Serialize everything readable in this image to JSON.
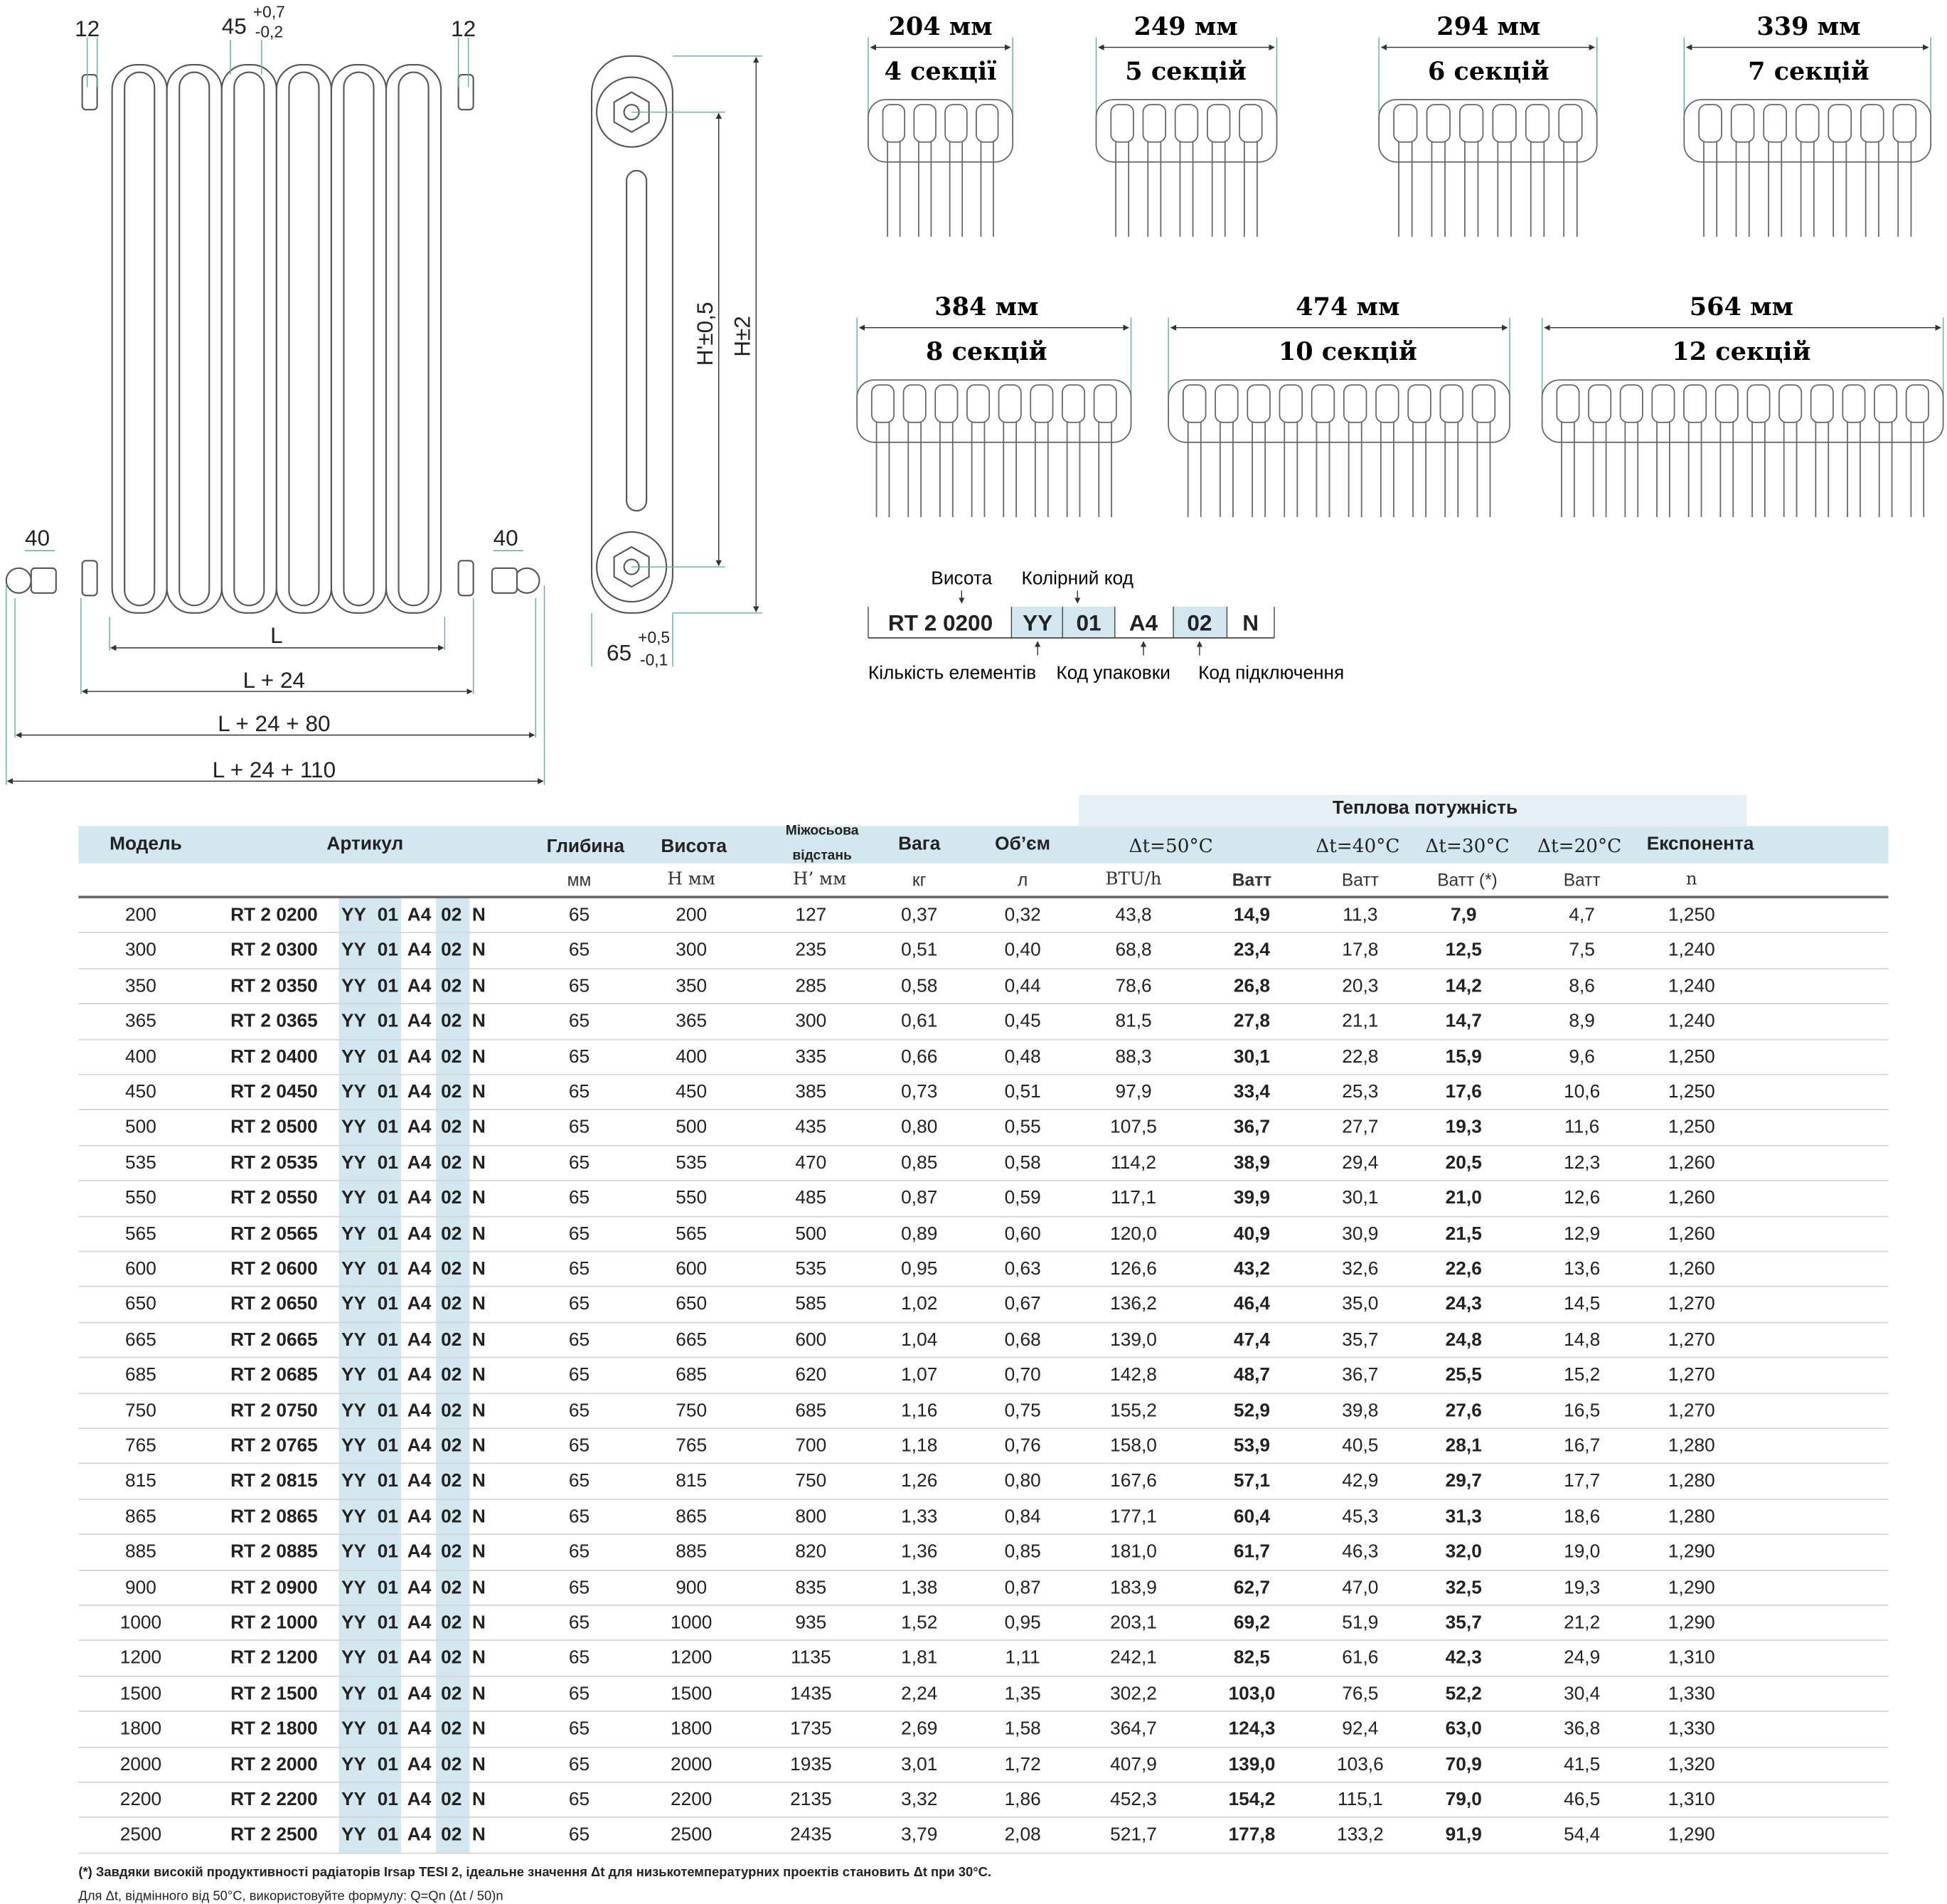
{
  "front_view": {
    "dim_left_12": "12",
    "dim_right_12": "12",
    "dim_45": "45",
    "tol_45_plus": "+0,7",
    "tol_45_minus": "-0,2",
    "dim_left_40": "40",
    "dim_right_40": "40",
    "dim_L": "L",
    "dim_L24": "L + 24",
    "dim_L24_80": "L + 24 + 80",
    "dim_L24_110": "L + 24 + 110"
  },
  "side_view": {
    "dim_h_axis": "H'±0,5",
    "dim_h": "H±2",
    "dim_65": "65",
    "tol_65_plus": "+0,5",
    "tol_65_minus": "-0,1"
  },
  "sections": [
    {
      "width": "204 мм",
      "label": "4 секції",
      "count": 4
    },
    {
      "width": "249 мм",
      "label": "5 секцій",
      "count": 5
    },
    {
      "width": "294 мм",
      "label": "6 секцій",
      "count": 6
    },
    {
      "width": "339 мм",
      "label": "7 секцій",
      "count": 7
    },
    {
      "width": "384 мм",
      "label": "8 секцій",
      "count": 8
    },
    {
      "width": "474 мм",
      "label": "10 секцій",
      "count": 10
    },
    {
      "width": "564 мм",
      "label": "12 секцій",
      "count": 12
    }
  ],
  "code_legend": {
    "label_height": "Висота",
    "label_color": "Колірний код",
    "parts": [
      "RT 2 0200",
      "YY",
      "01",
      "A4",
      "02",
      "N"
    ],
    "label_elements": "Кількість елементів",
    "label_package": "Код упаковки",
    "label_connection": "Код підключення",
    "highlight_color": "#d3e7ee"
  },
  "table": {
    "group_header": "Теплова потужність",
    "headers": {
      "model": "Модель",
      "article": "Артикул",
      "depth": "Глибина",
      "height": "Висота",
      "axis_1": "Міжосьова",
      "axis_2": "відстань",
      "weight": "Вага",
      "volume": "Об’єм",
      "dt50": "Δt=50°C",
      "dt40": "Δt=40°C",
      "dt30": "Δt=30°C",
      "dt20": "Δt=20°C",
      "exponent": "Експонента"
    },
    "units": {
      "depth": "мм",
      "height": "H мм",
      "axis": "H’ мм",
      "weight": "кг",
      "volume": "л",
      "btu": "BTU/h",
      "w50": "Ватт",
      "w40": "Ватт",
      "w30": "Ватт (*)",
      "w20": "Ватт",
      "n": "n"
    },
    "rows": [
      [
        "200",
        "0200",
        "65",
        "200",
        "127",
        "0,37",
        "0,32",
        "43,8",
        "14,9",
        "11,3",
        "7,9",
        "4,7",
        "1,250"
      ],
      [
        "300",
        "0300",
        "65",
        "300",
        "235",
        "0,51",
        "0,40",
        "68,8",
        "23,4",
        "17,8",
        "12,5",
        "7,5",
        "1,240"
      ],
      [
        "350",
        "0350",
        "65",
        "350",
        "285",
        "0,58",
        "0,44",
        "78,6",
        "26,8",
        "20,3",
        "14,2",
        "8,6",
        "1,240"
      ],
      [
        "365",
        "0365",
        "65",
        "365",
        "300",
        "0,61",
        "0,45",
        "81,5",
        "27,8",
        "21,1",
        "14,7",
        "8,9",
        "1,240"
      ],
      [
        "400",
        "0400",
        "65",
        "400",
        "335",
        "0,66",
        "0,48",
        "88,3",
        "30,1",
        "22,8",
        "15,9",
        "9,6",
        "1,250"
      ],
      [
        "450",
        "0450",
        "65",
        "450",
        "385",
        "0,73",
        "0,51",
        "97,9",
        "33,4",
        "25,3",
        "17,6",
        "10,6",
        "1,250"
      ],
      [
        "500",
        "0500",
        "65",
        "500",
        "435",
        "0,80",
        "0,55",
        "107,5",
        "36,7",
        "27,7",
        "19,3",
        "11,6",
        "1,250"
      ],
      [
        "535",
        "0535",
        "65",
        "535",
        "470",
        "0,85",
        "0,58",
        "114,2",
        "38,9",
        "29,4",
        "20,5",
        "12,3",
        "1,260"
      ],
      [
        "550",
        "0550",
        "65",
        "550",
        "485",
        "0,87",
        "0,59",
        "117,1",
        "39,9",
        "30,1",
        "21,0",
        "12,6",
        "1,260"
      ],
      [
        "565",
        "0565",
        "65",
        "565",
        "500",
        "0,89",
        "0,60",
        "120,0",
        "40,9",
        "30,9",
        "21,5",
        "12,9",
        "1,260"
      ],
      [
        "600",
        "0600",
        "65",
        "600",
        "535",
        "0,95",
        "0,63",
        "126,6",
        "43,2",
        "32,6",
        "22,6",
        "13,6",
        "1,260"
      ],
      [
        "650",
        "0650",
        "65",
        "650",
        "585",
        "1,02",
        "0,67",
        "136,2",
        "46,4",
        "35,0",
        "24,3",
        "14,5",
        "1,270"
      ],
      [
        "665",
        "0665",
        "65",
        "665",
        "600",
        "1,04",
        "0,68",
        "139,0",
        "47,4",
        "35,7",
        "24,8",
        "14,8",
        "1,270"
      ],
      [
        "685",
        "0685",
        "65",
        "685",
        "620",
        "1,07",
        "0,70",
        "142,8",
        "48,7",
        "36,7",
        "25,5",
        "15,2",
        "1,270"
      ],
      [
        "750",
        "0750",
        "65",
        "750",
        "685",
        "1,16",
        "0,75",
        "155,2",
        "52,9",
        "39,8",
        "27,6",
        "16,5",
        "1,270"
      ],
      [
        "765",
        "0765",
        "65",
        "765",
        "700",
        "1,18",
        "0,76",
        "158,0",
        "53,9",
        "40,5",
        "28,1",
        "16,7",
        "1,280"
      ],
      [
        "815",
        "0815",
        "65",
        "815",
        "750",
        "1,26",
        "0,80",
        "167,6",
        "57,1",
        "42,9",
        "29,7",
        "17,7",
        "1,280"
      ],
      [
        "865",
        "0865",
        "65",
        "865",
        "800",
        "1,33",
        "0,84",
        "177,1",
        "60,4",
        "45,3",
        "31,3",
        "18,6",
        "1,280"
      ],
      [
        "885",
        "0885",
        "65",
        "885",
        "820",
        "1,36",
        "0,85",
        "181,0",
        "61,7",
        "46,3",
        "32,0",
        "19,0",
        "1,290"
      ],
      [
        "900",
        "0900",
        "65",
        "900",
        "835",
        "1,38",
        "0,87",
        "183,9",
        "62,7",
        "47,0",
        "32,5",
        "19,3",
        "1,290"
      ],
      [
        "1000",
        "1000",
        "65",
        "1000",
        "935",
        "1,52",
        "0,95",
        "203,1",
        "69,2",
        "51,9",
        "35,7",
        "21,2",
        "1,290"
      ],
      [
        "1200",
        "1200",
        "65",
        "1200",
        "1135",
        "1,81",
        "1,11",
        "242,1",
        "82,5",
        "61,6",
        "42,3",
        "24,9",
        "1,310"
      ],
      [
        "1500",
        "1500",
        "65",
        "1500",
        "1435",
        "2,24",
        "1,35",
        "302,2",
        "103,0",
        "76,5",
        "52,2",
        "30,4",
        "1,330"
      ],
      [
        "1800",
        "1800",
        "65",
        "1800",
        "1735",
        "2,69",
        "1,58",
        "364,7",
        "124,3",
        "92,4",
        "63,0",
        "36,8",
        "1,330"
      ],
      [
        "2000",
        "2000",
        "65",
        "2000",
        "1935",
        "3,01",
        "1,72",
        "407,9",
        "139,0",
        "103,6",
        "70,9",
        "41,5",
        "1,320"
      ],
      [
        "2200",
        "2200",
        "65",
        "2200",
        "2135",
        "3,32",
        "1,86",
        "452,3",
        "154,2",
        "115,1",
        "79,0",
        "46,5",
        "1,310"
      ],
      [
        "2500",
        "2500",
        "65",
        "2500",
        "2435",
        "3,79",
        "2,08",
        "521,7",
        "177,8",
        "133,2",
        "91,9",
        "54,4",
        "1,290"
      ]
    ],
    "article_prefix": "RT 2 ",
    "article_suffix": [
      "YY",
      "01",
      "A4",
      "02",
      "N"
    ]
  },
  "footnotes": {
    "note1": "(*) Завдяки високій продуктивності радіаторів Irsap TESI 2, ідеальне значення Δt для низькотемпературних проектів становить Δt при 30°C.",
    "note2": "Для Δt, відмінного від 50°C, використовуйте формулу: Q=Qn (Δt / 50)n"
  }
}
